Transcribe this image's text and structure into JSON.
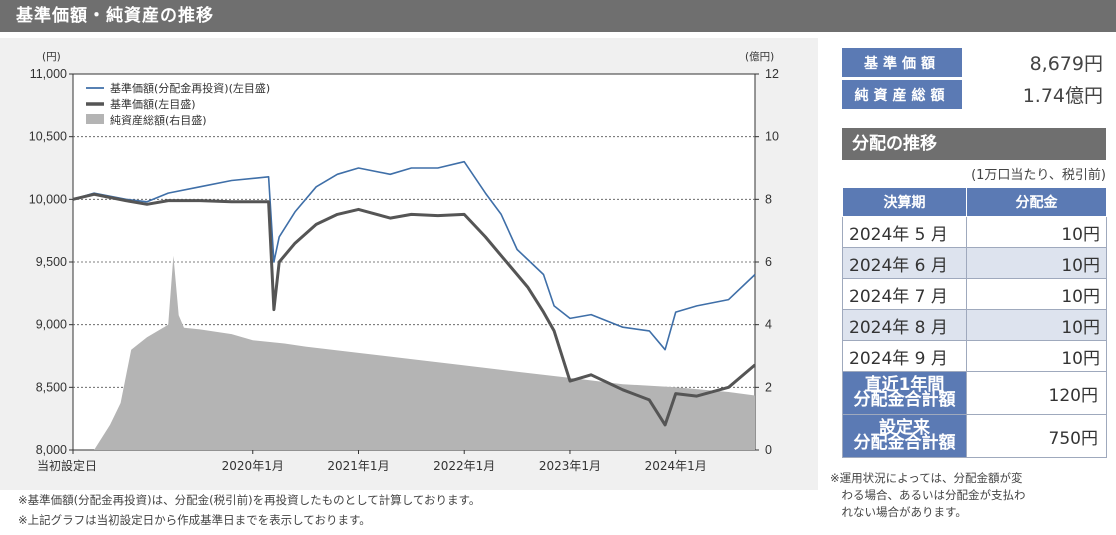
{
  "header": {
    "title": "基準価額・純資産の推移"
  },
  "summary": {
    "rows": [
      {
        "label": "基準価額",
        "value": "8,679円"
      },
      {
        "label": "純資産総額",
        "value": "1.74億円"
      }
    ]
  },
  "distribution": {
    "title": "分配の推移",
    "subtitle": "(1万口当たり、税引前)",
    "headers": [
      "決算期",
      "分配金"
    ],
    "rows": [
      {
        "period": "2024年 5 月",
        "amount": "10円"
      },
      {
        "period": "2024年 6 月",
        "amount": "10円"
      },
      {
        "period": "2024年 7 月",
        "amount": "10円"
      },
      {
        "period": "2024年 8 月",
        "amount": "10円"
      },
      {
        "period": "2024年 9 月",
        "amount": "10円"
      }
    ],
    "totals": [
      {
        "label": "直近1年間\n分配金合計額",
        "amount": "120円"
      },
      {
        "label": "設定来\n分配金合計額",
        "amount": "750円"
      }
    ],
    "note": "※運用状況によっては、分配金額が変\n　わる場合、あるいは分配金が支払わ\n　れない場合があります。"
  },
  "notes": [
    "※基準価額(分配金再投資)は、分配金(税引前)を再投資したものとして計算しております。",
    "※上記グラフは当初設定日から作成基準日までを表示しております。"
  ],
  "colors": {
    "reinvested": "#3f6fa8",
    "nav": "#555555",
    "aum": "#b4b4b4",
    "header_bg": "#6f6f6f",
    "table_header": "#5b7ab4"
  },
  "chart_data": {
    "type": "line",
    "left_axis": {
      "unit": "(円)",
      "min": 8000,
      "max": 11000,
      "ticks": [
        8000,
        8500,
        9000,
        9500,
        10000,
        10500,
        11000
      ],
      "tick_labels": [
        "8,000",
        "8,500",
        "9,000",
        "9,500",
        "10,000",
        "10,500",
        "11,000"
      ]
    },
    "right_axis": {
      "unit": "(億円)",
      "min": 0,
      "max": 12,
      "ticks": [
        0,
        2,
        4,
        6,
        8,
        10,
        12
      ],
      "tick_labels": [
        "0",
        "2",
        "4",
        "6",
        "8",
        "10",
        "12"
      ]
    },
    "x_axis": {
      "min": 2018.3,
      "max": 2024.75,
      "ticks": [
        2018.3,
        2020.0,
        2021.0,
        2022.0,
        2023.0,
        2024.0
      ],
      "tick_labels": [
        "当初設定日",
        "2020年1月",
        "2021年1月",
        "2022年1月",
        "2023年1月",
        "2024年1月"
      ]
    },
    "grid": true,
    "legend_position": "top-left",
    "series": [
      {
        "name": "基準価額(分配金再投資)(左目盛)",
        "axis": "left",
        "style": "line",
        "x": [
          2018.3,
          2018.5,
          2018.8,
          2019.0,
          2019.2,
          2019.5,
          2019.8,
          2020.15,
          2020.2,
          2020.25,
          2020.4,
          2020.6,
          2020.8,
          2021.0,
          2021.3,
          2021.5,
          2021.75,
          2022.0,
          2022.2,
          2022.35,
          2022.5,
          2022.6,
          2022.75,
          2022.85,
          2023.0,
          2023.2,
          2023.5,
          2023.75,
          2023.9,
          2024.0,
          2024.2,
          2024.5,
          2024.75
        ],
        "y": [
          10000,
          10050,
          10000,
          9980,
          10050,
          10100,
          10150,
          10180,
          9500,
          9700,
          9900,
          10100,
          10200,
          10250,
          10200,
          10250,
          10250,
          10300,
          10050,
          9880,
          9600,
          9520,
          9400,
          9150,
          9050,
          9080,
          8980,
          8950,
          8800,
          9100,
          9150,
          9200,
          9400
        ]
      },
      {
        "name": "基準価額(左目盛)",
        "axis": "left",
        "style": "line",
        "x": [
          2018.3,
          2018.5,
          2018.8,
          2019.0,
          2019.2,
          2019.5,
          2019.8,
          2020.15,
          2020.2,
          2020.25,
          2020.4,
          2020.6,
          2020.8,
          2021.0,
          2021.3,
          2021.5,
          2021.75,
          2022.0,
          2022.2,
          2022.35,
          2022.5,
          2022.6,
          2022.75,
          2022.85,
          2023.0,
          2023.2,
          2023.5,
          2023.75,
          2023.9,
          2024.0,
          2024.2,
          2024.5,
          2024.75
        ],
        "y": [
          10000,
          10040,
          9990,
          9960,
          9990,
          9990,
          9980,
          9980,
          9120,
          9500,
          9650,
          9800,
          9880,
          9920,
          9850,
          9880,
          9870,
          9880,
          9700,
          9550,
          9400,
          9300,
          9100,
          8950,
          8550,
          8600,
          8480,
          8400,
          8200,
          8450,
          8430,
          8500,
          8679
        ]
      },
      {
        "name": "純資産総額(右目盛)",
        "axis": "right",
        "style": "area",
        "x": [
          2018.3,
          2018.5,
          2018.65,
          2018.75,
          2018.85,
          2019.0,
          2019.2,
          2019.25,
          2019.3,
          2019.35,
          2019.5,
          2019.8,
          2020.0,
          2020.3,
          2020.5,
          2021.0,
          2021.5,
          2022.0,
          2022.5,
          2023.0,
          2023.5,
          2024.0,
          2024.5,
          2024.75
        ],
        "y": [
          0,
          0,
          0.8,
          1.5,
          3.2,
          3.6,
          4.0,
          6.2,
          4.3,
          3.9,
          3.85,
          3.7,
          3.5,
          3.4,
          3.3,
          3.1,
          2.9,
          2.7,
          2.5,
          2.3,
          2.1,
          2.0,
          1.85,
          1.74
        ]
      }
    ]
  }
}
